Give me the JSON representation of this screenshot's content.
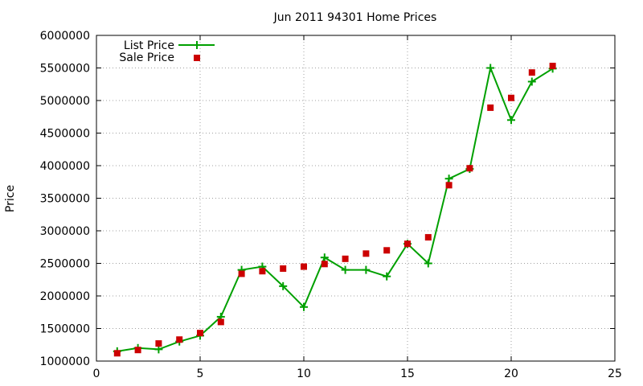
{
  "chart_data": {
    "type": "line",
    "title": "Jun 2011 94301 Home Prices",
    "xlabel": "",
    "ylabel": "Price",
    "xlim": [
      0,
      25
    ],
    "ylim": [
      1000000,
      6000000
    ],
    "xticks": [
      "0",
      "5",
      "10",
      "15",
      "20",
      "25"
    ],
    "yticks": [
      "1000000",
      "1500000",
      "2000000",
      "2500000",
      "3000000",
      "3500000",
      "4000000",
      "4500000",
      "5000000",
      "5500000",
      "6000000"
    ],
    "grid": true,
    "legend_position": "top-left",
    "series": [
      {
        "name": "List Price",
        "type": "line",
        "marker": "plus",
        "color": "#00a000",
        "x": [
          1,
          2,
          3,
          4,
          5,
          6,
          7,
          8,
          9,
          10,
          11,
          12,
          13,
          14,
          15,
          16,
          17,
          18,
          19,
          20,
          21,
          22
        ],
        "y": [
          1150000,
          1200000,
          1180000,
          1300000,
          1390000,
          1680000,
          2400000,
          2450000,
          2150000,
          1830000,
          2590000,
          2400000,
          2400000,
          2300000,
          2800000,
          2500000,
          3800000,
          3950000,
          5500000,
          4700000,
          5290000,
          5490000
        ]
      },
      {
        "name": "Sale Price",
        "type": "scatter",
        "marker": "square",
        "color": "#cc0000",
        "x": [
          1,
          2,
          3,
          4,
          5,
          6,
          7,
          8,
          9,
          10,
          11,
          12,
          13,
          14,
          15,
          16,
          17,
          18,
          19,
          20,
          21,
          22
        ],
        "y": [
          1120000,
          1170000,
          1270000,
          1330000,
          1430000,
          1600000,
          2340000,
          2380000,
          2420000,
          2450000,
          2490000,
          2570000,
          2650000,
          2700000,
          2800000,
          2900000,
          3700000,
          3960000,
          4890000,
          5040000,
          5430000,
          5530000
        ]
      }
    ]
  }
}
